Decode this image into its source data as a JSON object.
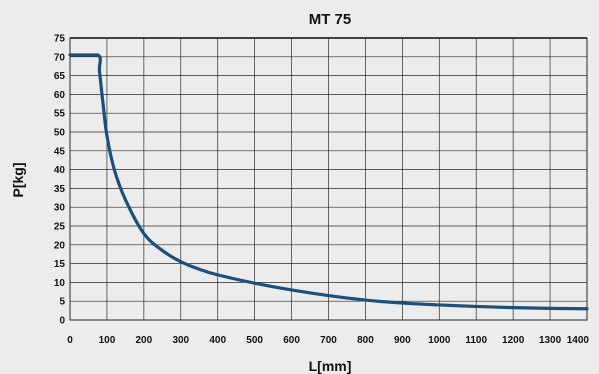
{
  "chart_data": {
    "type": "line",
    "title": "MT 75",
    "xlabel": "L[mm]",
    "ylabel": "P[kg]",
    "xlim": [
      0,
      1400
    ],
    "ylim": [
      0,
      75
    ],
    "grid": true,
    "x_ticks": [
      "0",
      "100",
      "200",
      "300",
      "400",
      "500",
      "600",
      "700",
      "800",
      "900",
      "1000",
      "1100",
      "1200",
      "1300",
      "1400"
    ],
    "y_ticks": [
      "0",
      "5",
      "10",
      "15",
      "20",
      "25",
      "30",
      "35",
      "40",
      "45",
      "50",
      "55",
      "60",
      "65",
      "70",
      "75"
    ],
    "series": [
      {
        "color": "#1c4f7a",
        "x": [
          0,
          75,
          80,
          90,
          100,
          120,
          150,
          200,
          250,
          300,
          350,
          400,
          500,
          600,
          700,
          800,
          900,
          1000,
          1100,
          1200,
          1300,
          1400
        ],
        "values": [
          70.5,
          70.5,
          66,
          57,
          49,
          40,
          32,
          23,
          18.5,
          15.5,
          13.5,
          12,
          9.8,
          8,
          6.5,
          5.3,
          4.5,
          4,
          3.6,
          3.3,
          3.1,
          3
        ]
      }
    ]
  }
}
